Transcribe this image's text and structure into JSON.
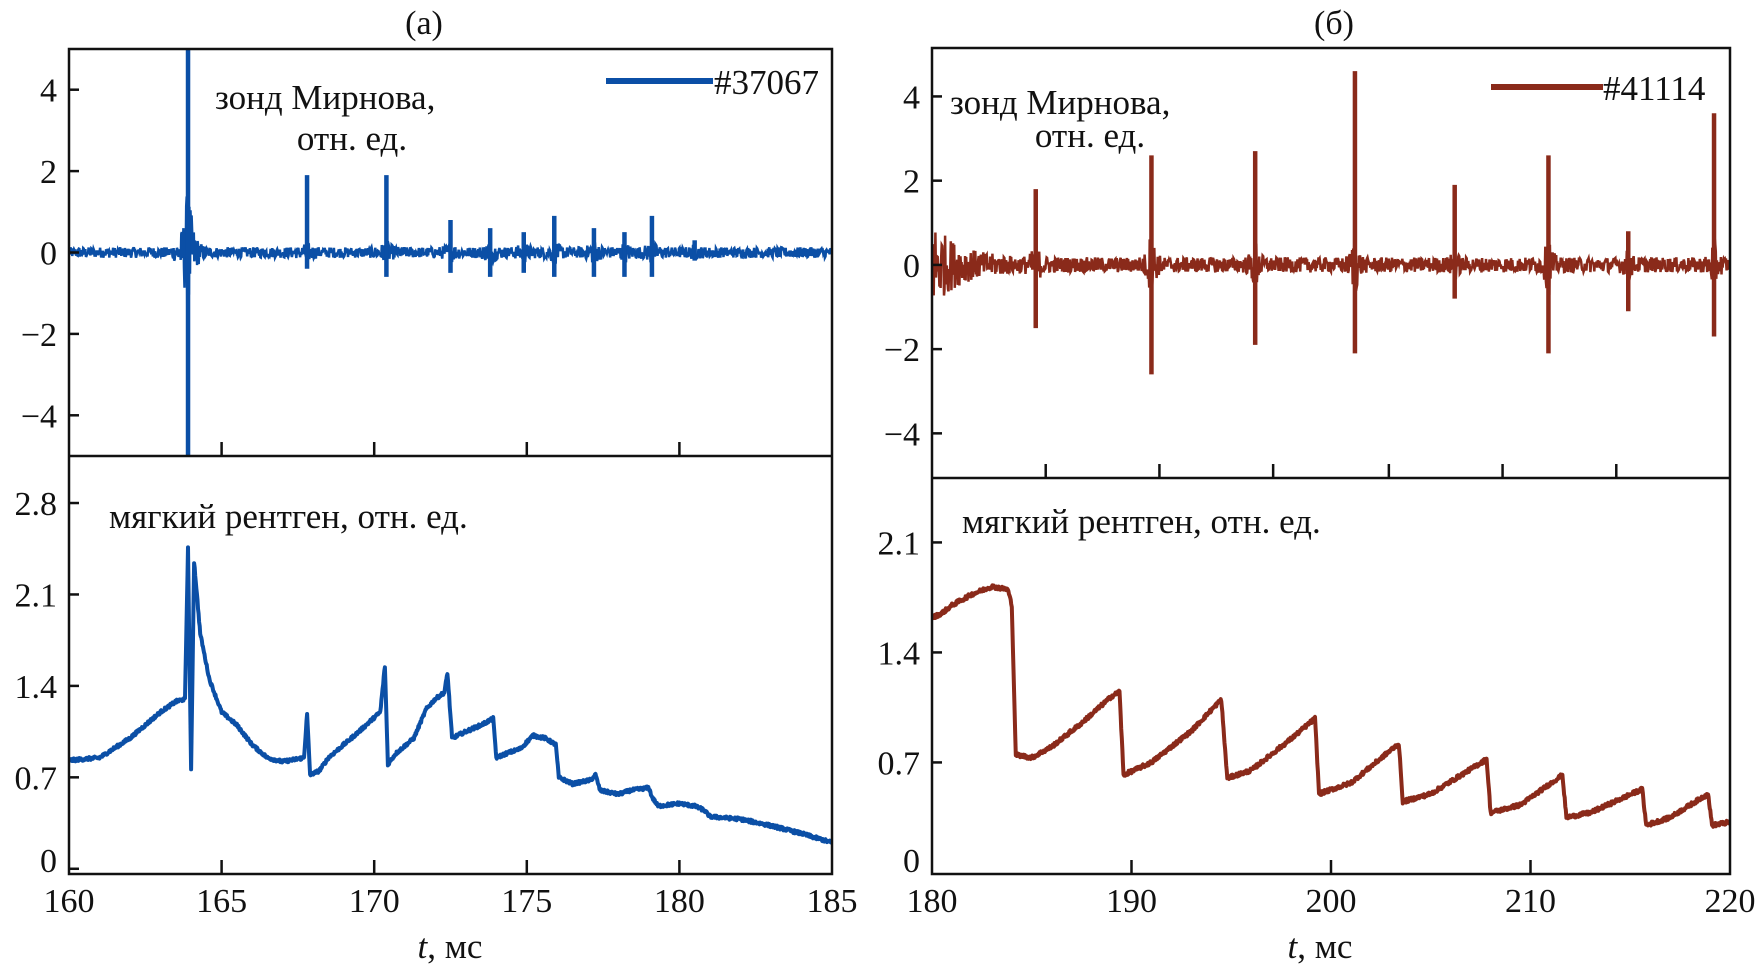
{
  "chart_data": [
    {
      "panel_label": "(а)",
      "type": "line",
      "color": "#0b4fa6",
      "legend": "#37067",
      "legend_placement": "top-right",
      "xlabel_italic": "t",
      "xlabel_unit": ", мс",
      "xlim": [
        160,
        185
      ],
      "xticks": [
        160,
        165,
        170,
        175,
        180,
        185
      ],
      "top": {
        "label_line1": "зонд Мирнова,",
        "label_line2": "отн. ед.",
        "ylim": [
          -5,
          5
        ],
        "yticks": [
          -4,
          -2,
          0,
          2,
          4
        ],
        "ytick_labels": [
          "−4",
          "−2",
          "0",
          "2",
          "4"
        ],
        "xticks": [
          165,
          170,
          175,
          180
        ],
        "spikes": [
          {
            "t": 163.9,
            "max": 5.0,
            "min": -5.0
          },
          {
            "t": 167.8,
            "max": 1.9,
            "min": -0.4
          },
          {
            "t": 170.4,
            "max": 1.9,
            "min": -0.6
          },
          {
            "t": 172.5,
            "max": 0.8,
            "min": -0.5
          },
          {
            "t": 173.8,
            "max": 0.6,
            "min": -0.6
          },
          {
            "t": 174.9,
            "max": 0.5,
            "min": -0.5
          },
          {
            "t": 175.9,
            "max": 0.9,
            "min": -0.6
          },
          {
            "t": 177.2,
            "max": 0.6,
            "min": -0.6
          },
          {
            "t": 178.2,
            "max": 0.5,
            "min": -0.6
          },
          {
            "t": 179.1,
            "max": 0.9,
            "min": -0.6
          },
          {
            "t": 180.5,
            "max": 0.3,
            "min": -0.2
          }
        ]
      },
      "bottom": {
        "label": "мягкий рентген, отн. ед.",
        "ylim": [
          -0.04,
          3.16
        ],
        "yticks": [
          0,
          0.7,
          1.4,
          2.1,
          2.8
        ],
        "ytick_labels": [
          "0",
          "0.7",
          "1.4",
          "2.1",
          "2.8"
        ],
        "points": [
          [
            160,
            0.83
          ],
          [
            161,
            0.85
          ],
          [
            162,
            1.0
          ],
          [
            163,
            1.2
          ],
          [
            163.5,
            1.28
          ],
          [
            163.8,
            1.3
          ],
          [
            163.9,
            2.45
          ],
          [
            164.0,
            0.75
          ],
          [
            164.1,
            2.35
          ],
          [
            164.3,
            1.8
          ],
          [
            164.6,
            1.45
          ],
          [
            165,
            1.2
          ],
          [
            165.5,
            1.1
          ],
          [
            166,
            0.95
          ],
          [
            166.5,
            0.85
          ],
          [
            167,
            0.82
          ],
          [
            167.7,
            0.85
          ],
          [
            167.8,
            1.18
          ],
          [
            167.9,
            0.72
          ],
          [
            168.2,
            0.75
          ],
          [
            168.5,
            0.85
          ],
          [
            169.5,
            1.05
          ],
          [
            170.2,
            1.2
          ],
          [
            170.35,
            1.55
          ],
          [
            170.45,
            0.8
          ],
          [
            170.7,
            0.88
          ],
          [
            171.3,
            1.0
          ],
          [
            171.7,
            1.22
          ],
          [
            172.0,
            1.3
          ],
          [
            172.3,
            1.35
          ],
          [
            172.4,
            1.5
          ],
          [
            172.55,
            1.0
          ],
          [
            173,
            1.05
          ],
          [
            173.5,
            1.1
          ],
          [
            173.9,
            1.15
          ],
          [
            174.0,
            0.85
          ],
          [
            174.3,
            0.88
          ],
          [
            174.8,
            0.92
          ],
          [
            175.2,
            1.02
          ],
          [
            175.6,
            1.0
          ],
          [
            175.95,
            0.95
          ],
          [
            176.05,
            0.7
          ],
          [
            176.5,
            0.65
          ],
          [
            177.1,
            0.68
          ],
          [
            177.25,
            0.72
          ],
          [
            177.4,
            0.6
          ],
          [
            178,
            0.57
          ],
          [
            178.4,
            0.6
          ],
          [
            179.0,
            0.62
          ],
          [
            179.1,
            0.55
          ],
          [
            179.3,
            0.48
          ],
          [
            180,
            0.5
          ],
          [
            180.5,
            0.48
          ],
          [
            180.8,
            0.45
          ],
          [
            181,
            0.4
          ],
          [
            182,
            0.38
          ],
          [
            183,
            0.33
          ],
          [
            184,
            0.27
          ],
          [
            185,
            0.2
          ]
        ]
      }
    },
    {
      "panel_label": "(б)",
      "type": "line",
      "color": "#8a2a1a",
      "legend": "#41114",
      "legend_placement": "top-right",
      "xlabel_italic": "t",
      "xlabel_unit": ", мс",
      "xlim": [
        180,
        220
      ],
      "xticks": [
        180,
        190,
        200,
        210,
        220
      ],
      "top": {
        "label_line1": "зонд Мирнова,",
        "label_line2": "отн. ед.",
        "ylim": [
          -5.06,
          5.15
        ],
        "yticks": [
          -4,
          -2,
          0,
          2,
          4
        ],
        "ytick_labels": [
          "−4",
          "−2",
          "0",
          "2",
          "4"
        ],
        "xticks": [
          185.7,
          191.4,
          197.1,
          202.9,
          208.6,
          214.3
        ],
        "spikes": [
          {
            "t": 185.2,
            "max": 1.8,
            "min": -1.5
          },
          {
            "t": 191.0,
            "max": 2.6,
            "min": -2.6
          },
          {
            "t": 196.2,
            "max": 2.7,
            "min": -1.9
          },
          {
            "t": 201.2,
            "max": 4.6,
            "min": -2.1
          },
          {
            "t": 206.2,
            "max": 1.9,
            "min": -0.8
          },
          {
            "t": 210.9,
            "max": 2.6,
            "min": -2.1
          },
          {
            "t": 214.9,
            "max": 0.8,
            "min": -1.1
          },
          {
            "t": 219.2,
            "max": 3.6,
            "min": -1.7
          }
        ]
      },
      "bottom": {
        "label": "мягкий рентген, отн. ед.",
        "ylim": [
          -0.01,
          2.51
        ],
        "yticks": [
          0,
          0.7,
          1.4,
          2.1
        ],
        "ytick_labels": [
          "0",
          "0.7",
          "1.4",
          "2.1"
        ],
        "points": [
          [
            180,
            1.62
          ],
          [
            180.5,
            1.65
          ],
          [
            181,
            1.7
          ],
          [
            182,
            1.77
          ],
          [
            183,
            1.82
          ],
          [
            183.8,
            1.8
          ],
          [
            184.0,
            1.7
          ],
          [
            184.2,
            0.75
          ],
          [
            185,
            0.73
          ],
          [
            186,
            0.8
          ],
          [
            187.5,
            0.95
          ],
          [
            189,
            1.12
          ],
          [
            189.4,
            1.15
          ],
          [
            189.6,
            0.62
          ],
          [
            191,
            0.7
          ],
          [
            193,
            0.9
          ],
          [
            194.5,
            1.1
          ],
          [
            194.8,
            0.6
          ],
          [
            196,
            0.65
          ],
          [
            198,
            0.85
          ],
          [
            199.2,
            0.98
          ],
          [
            199.4,
            0.5
          ],
          [
            201,
            0.57
          ],
          [
            203.4,
            0.82
          ],
          [
            203.6,
            0.45
          ],
          [
            205,
            0.5
          ],
          [
            207.8,
            0.72
          ],
          [
            208,
            0.38
          ],
          [
            209.5,
            0.43
          ],
          [
            211.6,
            0.62
          ],
          [
            211.8,
            0.35
          ],
          [
            213,
            0.38
          ],
          [
            215.6,
            0.53
          ],
          [
            215.8,
            0.3
          ],
          [
            217,
            0.35
          ],
          [
            218.9,
            0.5
          ],
          [
            219.1,
            0.3
          ],
          [
            220,
            0.32
          ]
        ]
      }
    }
  ]
}
